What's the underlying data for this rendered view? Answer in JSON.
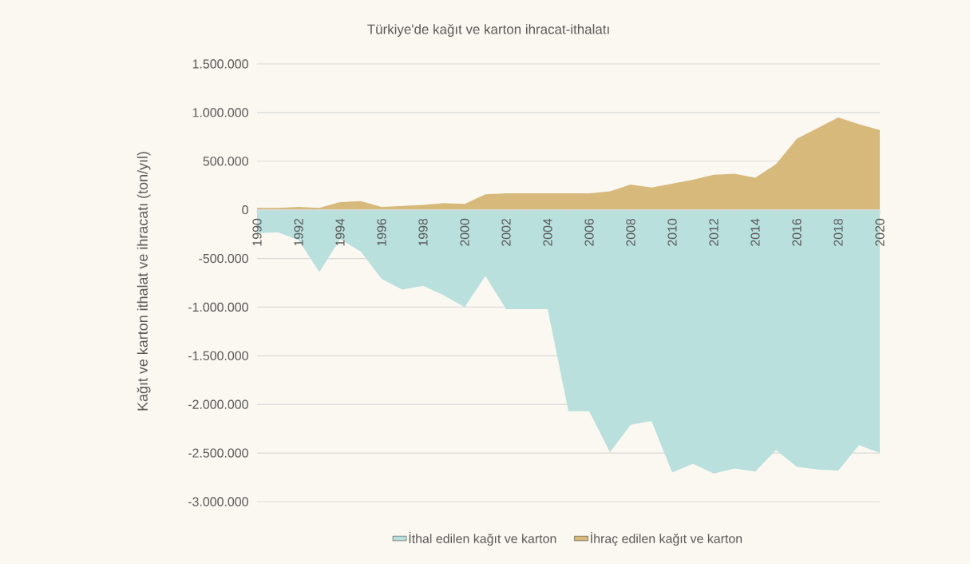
{
  "chart_data": {
    "type": "area",
    "title": "Türkiye'de kağıt ve karton ihracat-ithalatı",
    "ylabel": "Kağıt ve karton ithalat ve ihracatı (ton/yıl)",
    "x": [
      1990,
      1991,
      1992,
      1993,
      1994,
      1995,
      1996,
      1997,
      1998,
      1999,
      2000,
      2001,
      2002,
      2003,
      2004,
      2005,
      2006,
      2007,
      2008,
      2009,
      2010,
      2011,
      2012,
      2013,
      2014,
      2015,
      2016,
      2017,
      2018,
      2019,
      2020
    ],
    "series": [
      {
        "name": "İthal edilen kağıt ve karton",
        "color": "#b9e0dd",
        "values": [
          -240000,
          -230000,
          -310000,
          -640000,
          -300000,
          -430000,
          -710000,
          -820000,
          -780000,
          -880000,
          -1000000,
          -680000,
          -1020000,
          -1020000,
          -1020000,
          -2070000,
          -2070000,
          -2490000,
          -2210000,
          -2170000,
          -2700000,
          -2610000,
          -2710000,
          -2660000,
          -2690000,
          -2470000,
          -2640000,
          -2670000,
          -2680000,
          -2420000,
          -2500000
        ]
      },
      {
        "name": "İhraç edilen kağıt ve karton",
        "color": "#d7b97b",
        "values": [
          20000,
          20000,
          30000,
          20000,
          80000,
          90000,
          30000,
          40000,
          50000,
          70000,
          60000,
          160000,
          170000,
          170000,
          170000,
          170000,
          170000,
          190000,
          260000,
          230000,
          270000,
          310000,
          360000,
          370000,
          330000,
          470000,
          730000,
          840000,
          950000,
          880000,
          820000
        ]
      }
    ],
    "xlim": [
      1990,
      2020
    ],
    "xticks": [
      1990,
      {
        "value": 1991,
        "label": null
      },
      1992,
      {
        "value": 1993,
        "label": null
      },
      1994,
      {
        "value": 1995,
        "label": null
      },
      1996,
      {
        "value": 1997,
        "label": null
      },
      1998,
      {
        "value": 1999,
        "label": null
      },
      2000,
      {
        "value": 2001,
        "label": null
      },
      2002,
      {
        "value": 2003,
        "label": null
      },
      2004,
      {
        "value": 2005,
        "label": null
      },
      2006,
      {
        "value": 2007,
        "label": null
      },
      2008,
      {
        "value": 2009,
        "label": null
      },
      2010,
      {
        "value": 2011,
        "label": null
      },
      2012,
      {
        "value": 2013,
        "label": null
      },
      2014,
      {
        "value": 2015,
        "label": null
      },
      2016,
      {
        "value": 2017,
        "label": null
      },
      2018,
      {
        "value": 2019,
        "label": null
      },
      2020
    ],
    "ylim": [
      -3000000,
      1500000
    ],
    "yticks": [
      {
        "value": -3000000,
        "label": "-3.000.000"
      },
      {
        "value": -2500000,
        "label": "-2.500.000"
      },
      {
        "value": -2000000,
        "label": "-2.000.000"
      },
      {
        "value": -1500000,
        "label": "-1.500.000"
      },
      {
        "value": -1000000,
        "label": "-1.000.000"
      },
      {
        "value": -500000,
        "label": "-500.000"
      },
      0,
      {
        "value": 500000,
        "label": "500.000"
      },
      {
        "value": 1000000,
        "label": "1.000.000"
      },
      {
        "value": 1500000,
        "label": "1.500.000"
      }
    ],
    "grid": "y",
    "legend": "bottom"
  }
}
